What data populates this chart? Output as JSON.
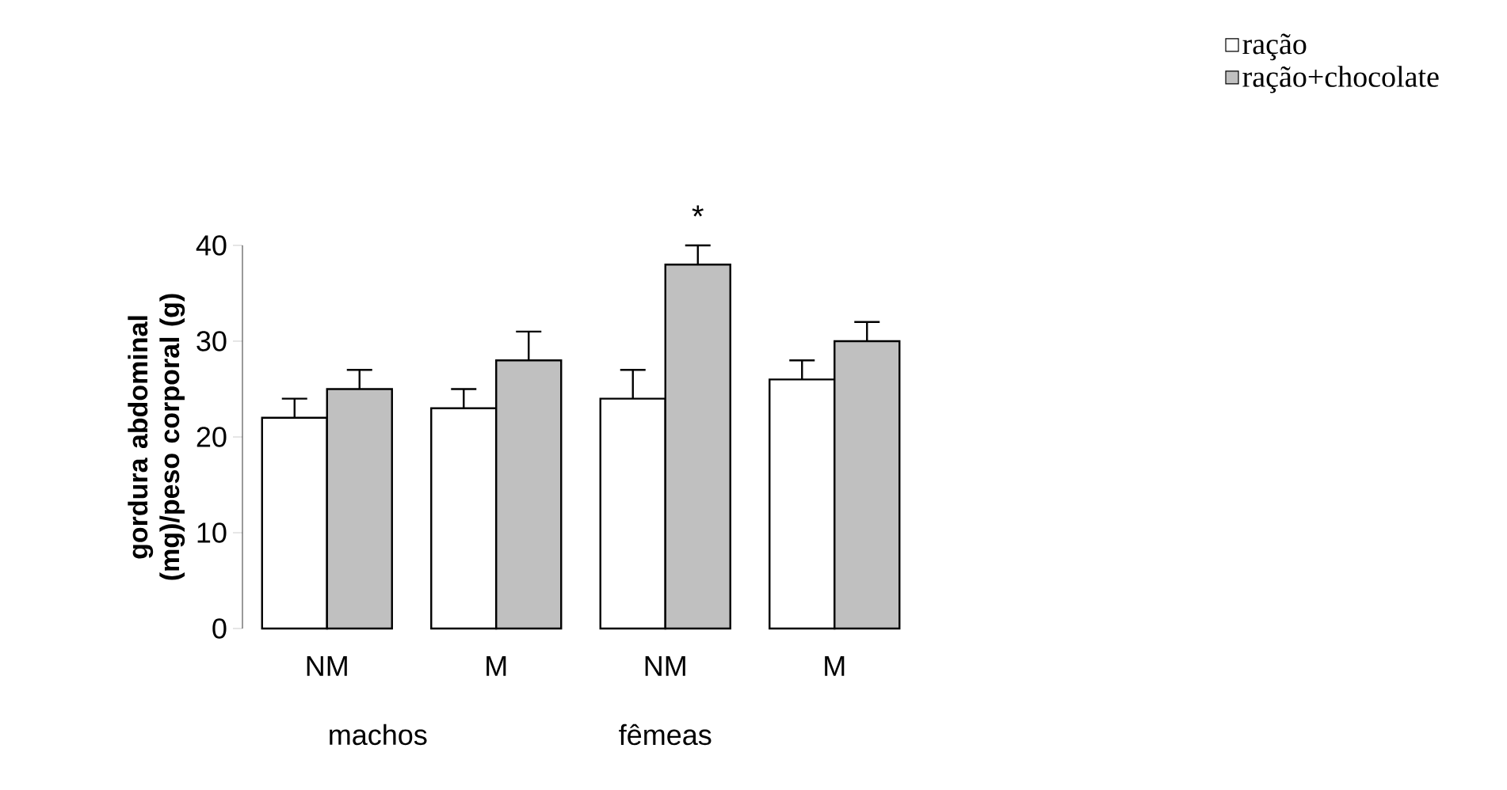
{
  "chart_data": {
    "type": "bar",
    "ylabel": "gordura abdominal (mg)/peso corporal (g)",
    "categories": [
      "NM",
      "M",
      "NM",
      "M"
    ],
    "series": [
      {
        "name": "ração",
        "color": "#ffffff",
        "values": [
          22,
          23,
          24,
          26
        ],
        "errors": [
          [
            22,
            24
          ],
          [
            23,
            25
          ],
          [
            24,
            27
          ],
          [
            26,
            28
          ]
        ]
      },
      {
        "name": "ração+chocolate",
        "color": "#c0c0c0",
        "values": [
          25,
          28,
          38,
          30
        ],
        "errors": [
          [
            25,
            27
          ],
          [
            28,
            31
          ],
          [
            38,
            40
          ],
          [
            30,
            32
          ]
        ]
      }
    ],
    "ylim": [
      0,
      40
    ],
    "yticks": [
      0,
      10,
      20,
      30,
      40
    ],
    "legend": "top right",
    "grid": false,
    "annotations": [
      "*",
      "machos",
      "fêmeas"
    ]
  }
}
